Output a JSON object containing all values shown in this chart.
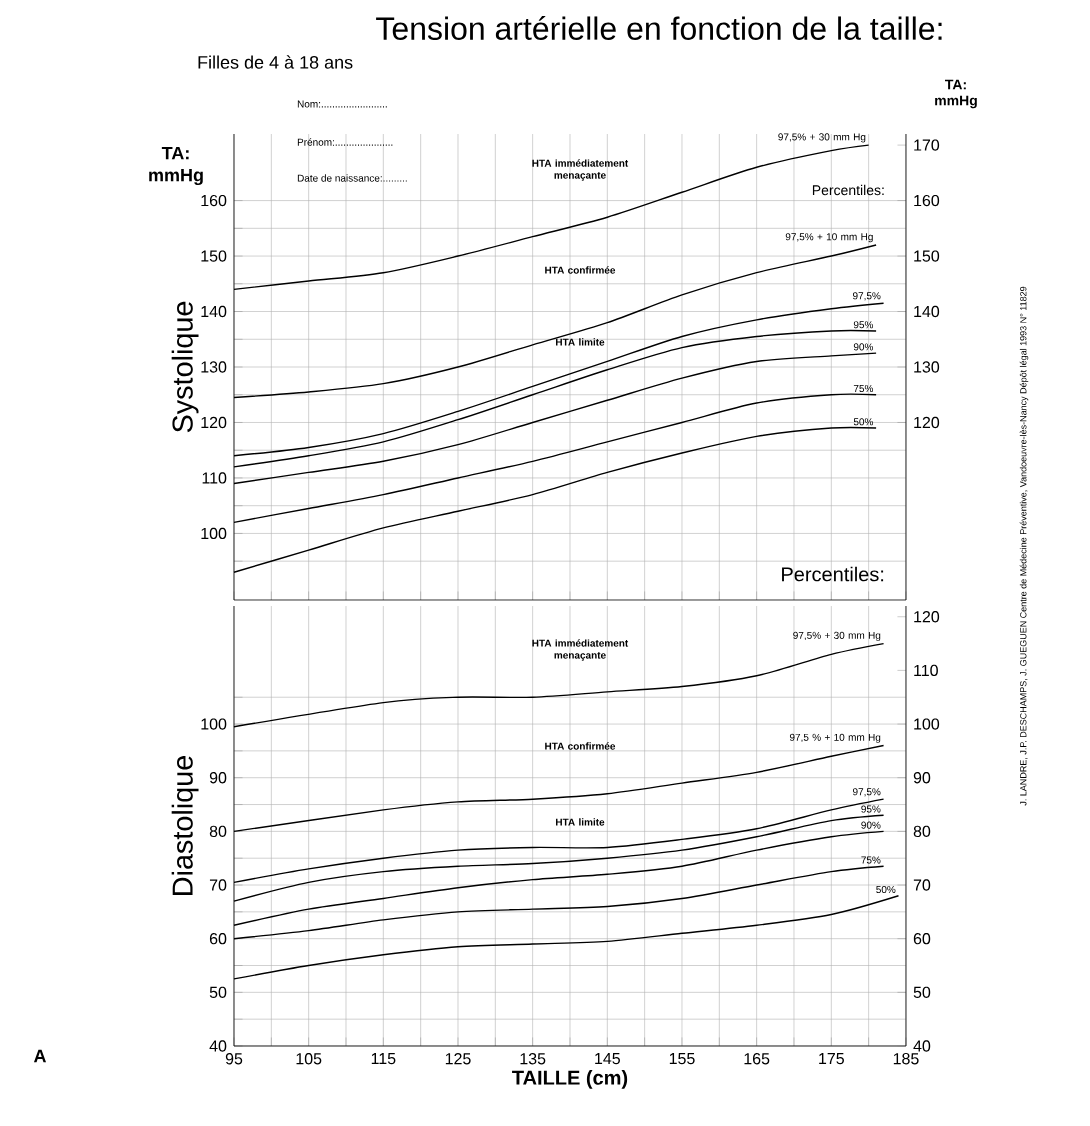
{
  "chart_data": [
    {
      "type": "line",
      "title": "Tension artérielle en fonction de la taille:",
      "subtitle": "Filles de 4 à 18 ans",
      "ylabel": "Systolique",
      "y2label": "TA: mmHg",
      "annotations": [
        "TA: mmHg",
        "Nom:........................",
        "Prénom:.....................",
        "Date de naissance:.........",
        "Percentiles:",
        "J. LANDRE, J.P. DESCHAMPS, J. GUEGUEN  Centre de Médecine Préventive, Vandoeuvre-lès-Nancy  Dépôt légal 1993 N° 11829",
        "HTA immédiatement menaçante",
        "HTA confirmée",
        "HTA limite"
      ],
      "xlim": [
        95,
        185
      ],
      "xticks": [
        95,
        {
          "value": 100,
          "label": null
        },
        105,
        {
          "value": 110,
          "label": null
        },
        115,
        {
          "value": 120,
          "label": null
        },
        125,
        {
          "value": 130,
          "label": null
        },
        135,
        {
          "value": 140,
          "label": null
        },
        145,
        {
          "value": 150,
          "label": null
        },
        155,
        {
          "value": 160,
          "label": null
        },
        165,
        {
          "value": 170,
          "label": null
        },
        175,
        {
          "value": 180,
          "label": null
        },
        185
      ],
      "ylim": [
        88,
        172
      ],
      "yticks": [
        {
          "value": 95,
          "label": null
        },
        100,
        {
          "value": 105,
          "label": null
        },
        110,
        {
          "value": 115,
          "label": null
        },
        120,
        {
          "value": 125,
          "label": null
        },
        130,
        {
          "value": 135,
          "label": null
        },
        140,
        {
          "value": 145,
          "label": null
        },
        150,
        {
          "value": 155,
          "label": null
        },
        160
      ],
      "y2lim": [
        88,
        172
      ],
      "y2ticks": [
        120,
        130,
        140,
        150,
        160,
        170
      ],
      "grid": true,
      "tick_labels": "y",
      "series": [
        {
          "name": "97,5% + 30 mm Hg",
          "color": "#000000",
          "x": [
            95,
            105,
            115,
            125,
            135,
            145,
            155,
            165,
            175,
            180
          ],
          "values": [
            144,
            145.5,
            147,
            150,
            153.5,
            157,
            161.5,
            166,
            169,
            170
          ]
        },
        {
          "name": "97,5% + 10 mm Hg",
          "color": "#000000",
          "x": [
            95,
            105,
            115,
            125,
            135,
            145,
            155,
            165,
            175,
            181
          ],
          "values": [
            124.5,
            125.5,
            127,
            130,
            134,
            138,
            143,
            147,
            150,
            152
          ]
        },
        {
          "name": "97,5%",
          "color": "#000000",
          "x": [
            95,
            105,
            115,
            125,
            135,
            145,
            155,
            165,
            175,
            182
          ],
          "values": [
            114,
            115.5,
            118,
            122,
            126.5,
            131,
            135.5,
            138.5,
            140.5,
            141.5
          ]
        },
        {
          "name": "95%",
          "color": "#000000",
          "x": [
            95,
            105,
            115,
            125,
            135,
            145,
            155,
            165,
            175,
            181
          ],
          "values": [
            112,
            114,
            116.5,
            120.5,
            125,
            129.5,
            133.5,
            135.5,
            136.5,
            136.5
          ]
        },
        {
          "name": "90%",
          "color": "#000000",
          "x": [
            95,
            105,
            115,
            125,
            135,
            145,
            155,
            165,
            175,
            181
          ],
          "values": [
            109,
            111,
            113,
            116,
            120,
            124,
            128,
            131,
            132,
            132.5
          ]
        },
        {
          "name": "75%",
          "color": "#000000",
          "x": [
            95,
            105,
            115,
            125,
            135,
            145,
            155,
            165,
            175,
            181
          ],
          "values": [
            102,
            104.5,
            107,
            110,
            113,
            116.5,
            120,
            123.5,
            125,
            125
          ]
        },
        {
          "name": "50%",
          "color": "#000000",
          "x": [
            95,
            105,
            115,
            125,
            135,
            145,
            155,
            165,
            175,
            181
          ],
          "values": [
            93,
            97,
            101,
            104,
            107,
            111,
            114.5,
            117.5,
            119,
            119
          ]
        }
      ]
    },
    {
      "type": "line",
      "ylabel": "Diastolique",
      "xlabel": "TAILLE (cm)",
      "annotations": [
        "Percentiles:",
        "A",
        "HTA immédiatement menaçante",
        "HTA confirmée",
        "HTA limite"
      ],
      "xlim": [
        95,
        185
      ],
      "xticks": [
        95,
        {
          "value": 100,
          "label": null
        },
        105,
        {
          "value": 110,
          "label": null
        },
        115,
        {
          "value": 120,
          "label": null
        },
        125,
        {
          "value": 130,
          "label": null
        },
        135,
        {
          "value": 140,
          "label": null
        },
        145,
        {
          "value": 150,
          "label": null
        },
        155,
        {
          "value": 160,
          "label": null
        },
        165,
        {
          "value": 170,
          "label": null
        },
        175,
        {
          "value": 180,
          "label": null
        },
        185
      ],
      "ylim": [
        40,
        122
      ],
      "yticks": [
        40,
        {
          "value": 45,
          "label": null
        },
        50,
        {
          "value": 55,
          "label": null
        },
        60,
        {
          "value": 65,
          "label": null
        },
        70,
        {
          "value": 75,
          "label": null
        },
        80,
        {
          "value": 85,
          "label": null
        },
        90,
        {
          "value": 95,
          "label": null
        },
        100,
        {
          "value": 105,
          "label": null
        }
      ],
      "y2lim": [
        40,
        122
      ],
      "y2ticks": [
        40,
        50,
        60,
        70,
        80,
        90,
        100,
        110,
        120
      ],
      "grid": true,
      "series": [
        {
          "name": "97,5% + 30 mm Hg",
          "color": "#000000",
          "x": [
            95,
            115,
            125,
            135,
            145,
            155,
            165,
            175,
            182
          ],
          "values": [
            99.5,
            104,
            105,
            105,
            106,
            107,
            109,
            113,
            115
          ]
        },
        {
          "name": "97,5 % + 10 mm Hg",
          "color": "#000000",
          "x": [
            95,
            115,
            125,
            135,
            145,
            155,
            165,
            175,
            182
          ],
          "values": [
            80,
            84,
            85.5,
            86,
            87,
            89,
            91,
            94,
            96
          ]
        },
        {
          "name": "97,5%",
          "color": "#000000",
          "x": [
            95,
            105,
            115,
            125,
            135,
            145,
            155,
            165,
            175,
            182
          ],
          "values": [
            70.5,
            73,
            75,
            76.5,
            77,
            77,
            78.5,
            80.5,
            84,
            86
          ]
        },
        {
          "name": "95%",
          "color": "#000000",
          "x": [
            95,
            105,
            115,
            125,
            135,
            145,
            155,
            165,
            175,
            182
          ],
          "values": [
            67,
            70.5,
            72.5,
            73.5,
            74,
            75,
            76.5,
            79,
            82,
            83
          ]
        },
        {
          "name": "90%",
          "color": "#000000",
          "x": [
            95,
            105,
            115,
            125,
            135,
            145,
            155,
            165,
            175,
            182
          ],
          "values": [
            62.5,
            65.5,
            67.5,
            69.5,
            71,
            72,
            73.5,
            76.5,
            79,
            80
          ]
        },
        {
          "name": "75%",
          "color": "#000000",
          "x": [
            95,
            105,
            115,
            125,
            135,
            145,
            155,
            165,
            175,
            182
          ],
          "values": [
            60,
            61.5,
            63.5,
            65,
            65.5,
            66,
            67.5,
            70,
            72.5,
            73.5
          ]
        },
        {
          "name": "50%",
          "color": "#000000",
          "x": [
            95,
            105,
            115,
            125,
            135,
            145,
            155,
            165,
            175,
            184
          ],
          "values": [
            52.5,
            55,
            57,
            58.5,
            59,
            59.5,
            61,
            62.5,
            64.5,
            68
          ]
        }
      ]
    }
  ]
}
